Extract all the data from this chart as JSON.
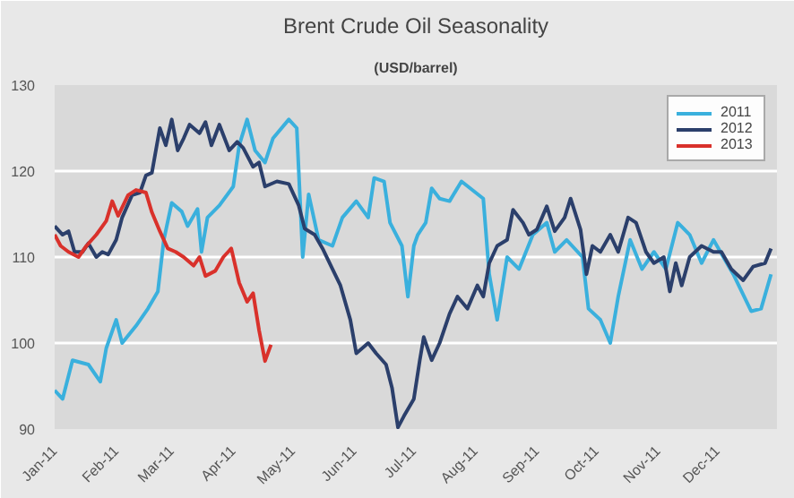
{
  "chart_data": {
    "type": "line",
    "title": "Brent Crude Oil Seasonality",
    "subtitle": "(USD/barrel)",
    "xlim": [
      "2011-01-01",
      "2011-12-31"
    ],
    "xticks": [
      {
        "value": "2011-01-01",
        "label": "Jan-11"
      },
      {
        "value": "2011-02-01",
        "label": "Feb-11"
      },
      {
        "value": "2011-03-01",
        "label": "Mar-11"
      },
      {
        "value": "2011-04-01",
        "label": "Apr-11"
      },
      {
        "value": "2011-05-01",
        "label": "May-11"
      },
      {
        "value": "2011-06-01",
        "label": "Jun-11"
      },
      {
        "value": "2011-07-01",
        "label": "Jul-11"
      },
      {
        "value": "2011-08-01",
        "label": "Aug-11"
      },
      {
        "value": "2011-09-01",
        "label": "Sep-11"
      },
      {
        "value": "2011-10-01",
        "label": "Oct-11"
      },
      {
        "value": "2011-11-01",
        "label": "Nov-11"
      },
      {
        "value": "2011-12-01",
        "label": "Dec-11"
      }
    ],
    "ylim": [
      90,
      130
    ],
    "yticks": [
      90,
      100,
      110,
      120,
      130
    ],
    "grid": "y",
    "legend": "top right",
    "marker": "none",
    "line_style": "solid",
    "series": [
      {
        "name": "2011",
        "color": "#3ab0dd",
        "x": [
          "2011-01-01",
          "2011-01-05",
          "2011-01-10",
          "2011-01-18",
          "2011-01-24",
          "2011-01-27",
          "2011-02-01",
          "2011-02-04",
          "2011-02-11",
          "2011-02-17",
          "2011-02-22",
          "2011-02-25",
          "2011-03-01",
          "2011-03-06",
          "2011-03-09",
          "2011-03-14",
          "2011-03-16",
          "2011-03-19",
          "2011-03-25",
          "2011-04-01",
          "2011-04-04",
          "2011-04-08",
          "2011-04-12",
          "2011-04-17",
          "2011-04-21",
          "2011-04-29",
          "2011-05-03",
          "2011-05-06",
          "2011-05-09",
          "2011-05-14",
          "2011-05-21",
          "2011-05-26",
          "2011-06-02",
          "2011-06-08",
          "2011-06-11",
          "2011-06-16",
          "2011-06-19",
          "2011-06-25",
          "2011-06-28",
          "2011-07-01",
          "2011-07-03",
          "2011-07-07",
          "2011-07-10",
          "2011-07-14",
          "2011-07-19",
          "2011-07-25",
          "2011-08-05",
          "2011-08-08",
          "2011-08-12",
          "2011-08-17",
          "2011-08-23",
          "2011-08-30",
          "2011-09-06",
          "2011-09-10",
          "2011-09-16",
          "2011-09-24",
          "2011-09-27",
          "2011-10-03",
          "2011-10-08",
          "2011-10-12",
          "2011-10-18",
          "2011-10-24",
          "2011-10-30",
          "2011-11-05",
          "2011-11-11",
          "2011-11-17",
          "2011-11-23",
          "2011-11-29",
          "2011-12-04",
          "2011-12-09",
          "2011-12-18",
          "2011-12-23",
          "2011-12-28"
        ],
        "values": [
          94.5,
          93.5,
          98,
          97.5,
          95.5,
          99.4,
          102.7,
          100,
          102,
          104,
          106,
          112,
          116.3,
          115.3,
          113.6,
          115.6,
          110.6,
          114.6,
          116,
          118.2,
          123,
          126,
          122.4,
          121,
          123.8,
          126,
          125,
          110,
          117.3,
          112,
          111.3,
          114.6,
          116.5,
          114.6,
          119.2,
          118.8,
          114,
          111.3,
          105.4,
          111.3,
          112.6,
          114,
          118,
          116.8,
          116.5,
          118.8,
          116.8,
          108,
          102.7,
          110,
          108.6,
          112.6,
          114,
          110.6,
          112,
          110,
          104,
          102.7,
          100,
          105.4,
          112,
          108.6,
          110.6,
          108.6,
          114,
          112.6,
          109.3,
          112,
          110,
          108,
          103.7,
          104,
          108
        ]
      },
      {
        "name": "2012",
        "color": "#2b3f6b",
        "x": [
          "2011-01-01",
          "2011-01-05",
          "2011-01-08",
          "2011-01-11",
          "2011-01-15",
          "2011-01-18",
          "2011-01-22",
          "2011-01-25",
          "2011-01-28",
          "2011-02-01",
          "2011-02-04",
          "2011-02-09",
          "2011-02-13",
          "2011-02-16",
          "2011-02-19",
          "2011-02-23",
          "2011-02-26",
          "2011-03-01",
          "2011-03-04",
          "2011-03-07",
          "2011-03-10",
          "2011-03-15",
          "2011-03-18",
          "2011-03-21",
          "2011-03-25",
          "2011-03-30",
          "2011-04-03",
          "2011-04-06",
          "2011-04-11",
          "2011-04-14",
          "2011-04-17",
          "2011-04-23",
          "2011-04-29",
          "2011-05-04",
          "2011-05-07",
          "2011-05-12",
          "2011-05-16",
          "2011-05-21",
          "2011-05-25",
          "2011-05-30",
          "2011-06-02",
          "2011-06-08",
          "2011-06-12",
          "2011-06-17",
          "2011-06-20",
          "2011-06-23",
          "2011-06-26",
          "2011-07-01",
          "2011-07-04",
          "2011-07-06",
          "2011-07-10",
          "2011-07-14",
          "2011-07-19",
          "2011-07-23",
          "2011-07-28",
          "2011-08-02",
          "2011-08-05",
          "2011-08-08",
          "2011-08-12",
          "2011-08-17",
          "2011-08-20",
          "2011-08-25",
          "2011-08-28",
          "2011-09-01",
          "2011-09-06",
          "2011-09-10",
          "2011-09-15",
          "2011-09-18",
          "2011-09-23",
          "2011-09-26",
          "2011-09-29",
          "2011-10-03",
          "2011-10-08",
          "2011-10-12",
          "2011-10-17",
          "2011-10-21",
          "2011-10-26",
          "2011-10-30",
          "2011-11-04",
          "2011-11-07",
          "2011-11-10",
          "2011-11-13",
          "2011-11-17",
          "2011-11-23",
          "2011-11-29",
          "2011-12-03",
          "2011-12-08",
          "2011-12-14",
          "2011-12-19",
          "2011-12-25",
          "2011-12-28"
        ],
        "values": [
          113.6,
          112.6,
          113,
          110.6,
          110.6,
          111.6,
          110,
          110.6,
          110.3,
          112,
          114.6,
          117.2,
          117.5,
          119.5,
          119.8,
          125,
          123,
          126,
          122.4,
          123.8,
          125.4,
          124.4,
          125.7,
          123,
          125.4,
          122.4,
          123.4,
          122.7,
          120.5,
          121,
          118.2,
          118.8,
          118.5,
          116,
          113.3,
          112.6,
          111,
          108.6,
          106.7,
          102.7,
          98.8,
          100,
          98.8,
          97.5,
          94.8,
          90.2,
          91.5,
          93.5,
          98,
          100.7,
          98,
          100,
          103.4,
          105.4,
          104,
          106.7,
          105.4,
          109.3,
          111.3,
          112,
          115.5,
          114,
          112.6,
          113.2,
          115.9,
          113,
          114.6,
          116.8,
          113.2,
          108,
          111.3,
          110.6,
          112.6,
          110.6,
          114.6,
          114,
          110.6,
          109.3,
          110,
          106,
          109.3,
          106.7,
          110,
          111.3,
          110.6,
          110.6,
          108.6,
          107.3,
          108.9,
          109.3,
          111
        ]
      },
      {
        "name": "2013",
        "color": "#d9312b",
        "x": [
          "2011-01-01",
          "2011-01-04",
          "2011-01-08",
          "2011-01-13",
          "2011-01-17",
          "2011-01-22",
          "2011-01-27",
          "2011-01-30",
          "2011-02-02",
          "2011-02-07",
          "2011-02-11",
          "2011-02-16",
          "2011-02-19",
          "2011-02-23",
          "2011-02-27",
          "2011-03-03",
          "2011-03-07",
          "2011-03-12",
          "2011-03-15",
          "2011-03-18",
          "2011-03-23",
          "2011-03-27",
          "2011-03-31",
          "2011-04-04",
          "2011-04-08",
          "2011-04-11",
          "2011-04-14",
          "2011-04-17",
          "2011-04-20"
        ],
        "values": [
          112.6,
          111.3,
          110.6,
          110,
          111.3,
          112.6,
          114.2,
          116.5,
          114.8,
          117.2,
          117.8,
          117.5,
          115.2,
          113,
          111,
          110.6,
          110,
          109,
          110,
          107.8,
          108.4,
          110,
          111,
          107,
          104.8,
          105.8,
          101.5,
          97.9,
          99.8
        ]
      }
    ]
  }
}
